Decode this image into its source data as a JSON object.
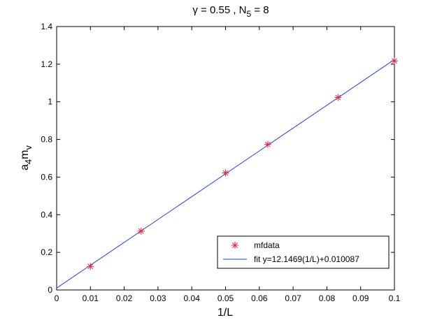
{
  "chart_data": {
    "type": "scatter",
    "title": {
      "parts": [
        {
          "text": "γ = 0.55 , N"
        },
        {
          "text": "5",
          "sub": true
        },
        {
          "text": " = 8"
        }
      ]
    },
    "xlabel": "1/L",
    "ylabel": {
      "parts": [
        {
          "text": "a"
        },
        {
          "text": "4",
          "sub": true
        },
        {
          "text": "m"
        },
        {
          "text": "v",
          "sub": true
        }
      ]
    },
    "xlim": [
      0,
      0.1
    ],
    "ylim": [
      0,
      1.4
    ],
    "xticks": [
      0,
      0.01,
      0.02,
      0.03,
      0.04,
      0.05,
      0.06,
      0.07,
      0.08,
      0.09,
      0.1
    ],
    "xtick_labels": [
      "0",
      "0.01",
      "0.02",
      "0.03",
      "0.04",
      "0.05",
      "0.06",
      "0.07",
      "0.08",
      "0.09",
      "0.1"
    ],
    "yticks": [
      0,
      0.2,
      0.4,
      0.6,
      0.8,
      1,
      1.2,
      1.4
    ],
    "ytick_labels": [
      "0",
      "0.2",
      "0.4",
      "0.6",
      "0.8",
      "1",
      "1.2",
      "1.4"
    ],
    "grid": false,
    "legend_position": "bottom-right",
    "series": [
      {
        "name": "mfdata",
        "kind": "scatter",
        "marker": "asterisk",
        "color": "#e8263a",
        "x": [
          0.01,
          0.025,
          0.05,
          0.0625,
          0.0833,
          0.1
        ],
        "y": [
          0.125,
          0.313,
          0.622,
          0.774,
          1.023,
          1.217
        ]
      },
      {
        "name": "fit y=12.1469(1/L)+0.010087",
        "kind": "line",
        "color": "#1f3cff",
        "slope": 12.1469,
        "intercept": 0.010087,
        "x_range": [
          0,
          0.1
        ]
      }
    ]
  }
}
